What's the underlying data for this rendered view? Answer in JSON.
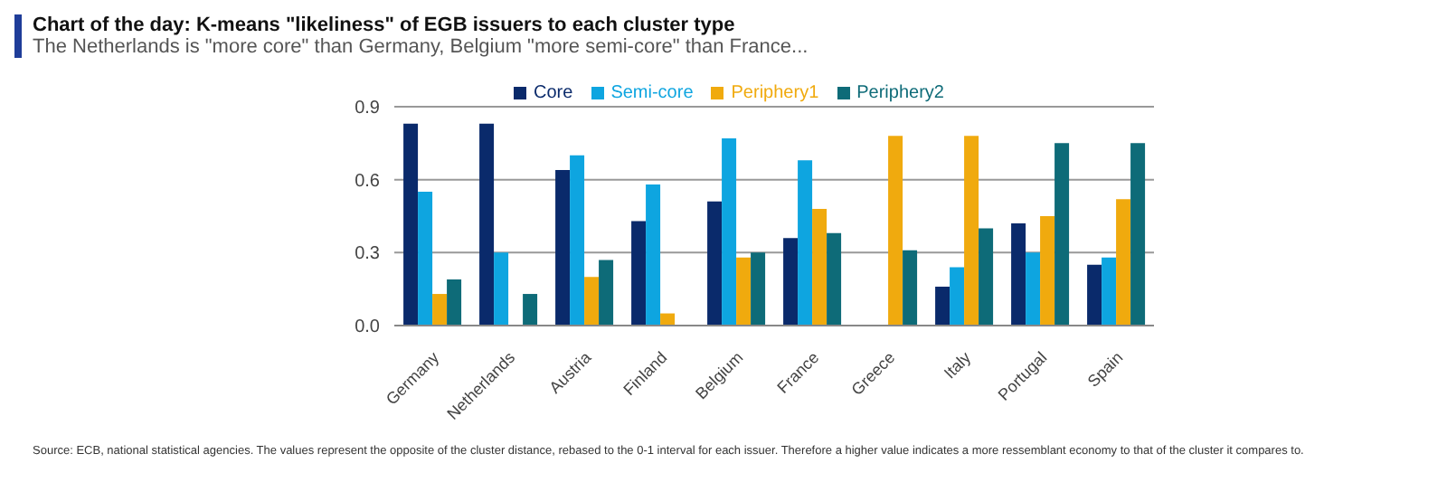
{
  "chart_data": {
    "type": "bar",
    "title": "Chart of the day: K-means \"likeliness\" of EGB issuers to each cluster type",
    "subtitle": "The Netherlands is \"more core\" than Germany, Belgium \"more semi-core\" than France...",
    "categories": [
      "Germany",
      "Netherlands",
      "Austria",
      "Finland",
      "Belgium",
      "France",
      "Greece",
      "Italy",
      "Portugal",
      "Spain"
    ],
    "series": [
      {
        "name": "Core",
        "color": "#0a2a6b",
        "values": [
          0.83,
          0.83,
          0.64,
          0.43,
          0.51,
          0.36,
          0,
          0.16,
          0.42,
          0.25
        ]
      },
      {
        "name": "Semi-core",
        "color": "#0ea5e0",
        "values": [
          0.55,
          0.3,
          0.7,
          0.58,
          0.77,
          0.68,
          0,
          0.24,
          0.3,
          0.28
        ]
      },
      {
        "name": "Periphery1",
        "color": "#f0aa0e",
        "values": [
          0.13,
          0,
          0.2,
          0.05,
          0.28,
          0.48,
          0.78,
          0.78,
          0.45,
          0.52
        ]
      },
      {
        "name": "Periphery2",
        "color": "#0e6b78",
        "values": [
          0.19,
          0.13,
          0.27,
          0,
          0.3,
          0.38,
          0.31,
          0.4,
          0.75,
          0.75
        ]
      }
    ],
    "ylim": [
      0,
      0.9
    ],
    "yticks": [
      {
        "value": 0,
        "label": "0.0"
      },
      {
        "value": 0.3,
        "label": "0.3"
      },
      {
        "value": 0.6,
        "label": "0.6"
      },
      {
        "value": 0.9,
        "label": "0.9"
      }
    ],
    "grid": "y",
    "legend": "top",
    "annotations": [
      "Source: ECB, national statistical agencies. The values represent the opposite of the cluster distance, rebased to the 0-1 interval for each issuer. Therefore a higher value indicates a more ressemblant economy to that of the cluster it compares to."
    ]
  }
}
